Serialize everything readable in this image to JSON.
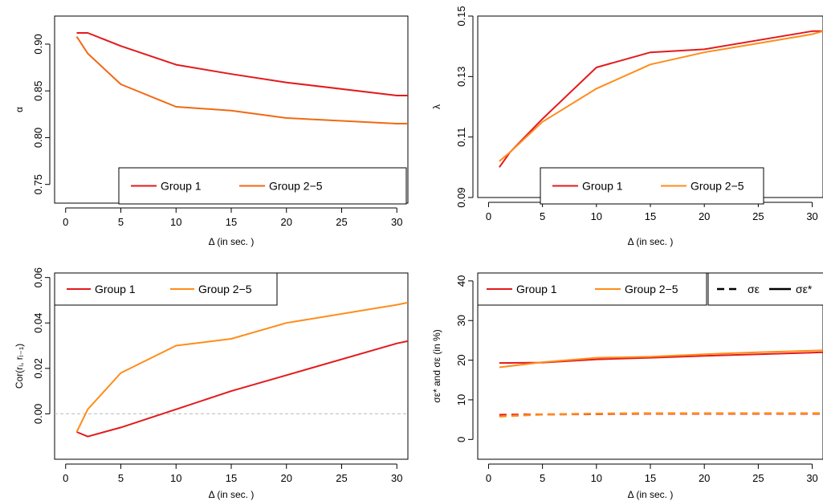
{
  "colors": {
    "group1": "#e31a1c",
    "group2_5_alpha": "#f16913",
    "group2_5": "#ff8c1a",
    "zero_line": "#bbbbbb"
  },
  "chart_data": [
    {
      "type": "line",
      "xlabel": "Δ (in sec. )",
      "ylabel": "α",
      "xlim": [
        -1,
        31
      ],
      "ylim": [
        0.73,
        0.93
      ],
      "xticks": [
        "0",
        "5",
        "10",
        "15",
        "20",
        "25",
        "30"
      ],
      "yticks": [
        "0.75",
        "0.80",
        "0.85",
        "0.90"
      ],
      "legend": "bottom",
      "x": [
        1,
        2,
        5,
        10,
        15,
        20,
        30,
        31
      ],
      "series": [
        {
          "name": "Group 1",
          "values": [
            0.912,
            0.912,
            0.898,
            0.878,
            0.868,
            0.859,
            0.845,
            0.845
          ]
        },
        {
          "name": "Group 2−5",
          "values": [
            0.908,
            0.89,
            0.857,
            0.833,
            0.829,
            0.821,
            0.815,
            0.815
          ]
        }
      ]
    },
    {
      "type": "line",
      "xlabel": "Δ (in sec. )",
      "ylabel": "λ",
      "xlim": [
        -1,
        31
      ],
      "ylim": [
        0.09,
        0.15
      ],
      "xticks": [
        "0",
        "5",
        "10",
        "15",
        "20",
        "25",
        "30"
      ],
      "yticks": [
        "0.09",
        "0.11",
        "0.13",
        "0.15"
      ],
      "legend": "bottom",
      "x": [
        1,
        2,
        5,
        10,
        15,
        20,
        30,
        31
      ],
      "series": [
        {
          "name": "Group 1",
          "values": [
            0.1,
            0.105,
            0.116,
            0.133,
            0.138,
            0.139,
            0.145,
            0.145
          ]
        },
        {
          "name": "Group 2−5",
          "values": [
            0.102,
            0.105,
            0.115,
            0.126,
            0.134,
            0.138,
            0.144,
            0.145
          ]
        }
      ]
    },
    {
      "type": "line",
      "xlabel": "Δ (in sec. )",
      "ylabel": "Cor(rᵢ, rᵢ₋₁)",
      "xlim": [
        -1,
        31
      ],
      "ylim": [
        -0.02,
        0.062
      ],
      "xticks": [
        "0",
        "5",
        "10",
        "15",
        "20",
        "25",
        "30"
      ],
      "yticks": [
        "0.00",
        "0.02",
        "0.04",
        "0.06"
      ],
      "legend": "top-left",
      "x": [
        1,
        2,
        5,
        10,
        15,
        20,
        30,
        31
      ],
      "series": [
        {
          "name": "Group 1",
          "values": [
            -0.008,
            -0.01,
            -0.006,
            0.002,
            0.01,
            0.017,
            0.031,
            0.032
          ]
        },
        {
          "name": "Group 2−5",
          "values": [
            -0.008,
            0.002,
            0.018,
            0.03,
            0.033,
            0.04,
            0.048,
            0.049
          ]
        }
      ]
    },
    {
      "type": "line",
      "xlabel": "Δ (in sec. )",
      "ylabel": "σε* and σε (in %)",
      "xlim": [
        -1,
        31
      ],
      "ylim": [
        -5,
        42
      ],
      "xticks": [
        "0",
        "5",
        "10",
        "15",
        "20",
        "25",
        "30"
      ],
      "yticks": [
        "0",
        "10",
        "20",
        "30",
        "40"
      ],
      "legend": "top",
      "x": [
        1,
        5,
        10,
        15,
        20,
        25,
        30,
        31
      ],
      "series": [
        {
          "name": "Group 1",
          "values": [
            19.3,
            19.4,
            20.2,
            20.6,
            21.1,
            21.5,
            21.9,
            22.0
          ]
        },
        {
          "name": "Group 2−5",
          "values": [
            18.2,
            19.5,
            20.6,
            20.9,
            21.5,
            22.0,
            22.4,
            22.5
          ]
        },
        {
          "name": "Group 1 σε",
          "values": [
            6.2,
            6.3,
            6.4,
            6.5,
            6.5,
            6.5,
            6.5,
            6.5
          ]
        },
        {
          "name": "Group 2−5 σε",
          "values": [
            5.8,
            6.3,
            6.5,
            6.6,
            6.6,
            6.6,
            6.6,
            6.6
          ]
        }
      ],
      "style_legend": [
        {
          "label": "σε",
          "dash": true
        },
        {
          "label": "σε*",
          "dash": false
        }
      ]
    }
  ]
}
